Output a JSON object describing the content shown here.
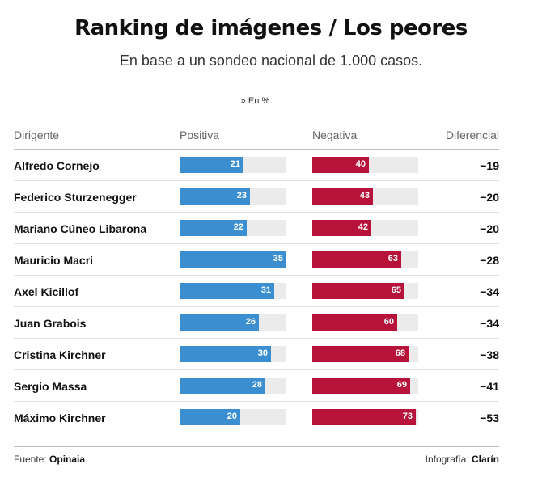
{
  "header": {
    "title": "Ranking de imágenes / Los peores",
    "subtitle": "En base a un sondeo nacional de 1.000 casos.",
    "note": "» En %."
  },
  "columns": {
    "dirigente": "Dirigente",
    "positiva": "Positiva",
    "negativa": "Negativa",
    "diferencial": "Diferencial"
  },
  "footer": {
    "source_label": "Fuente: ",
    "source": "Opinaia",
    "credit_label": "Infografía: ",
    "credit": "Clarín"
  },
  "colors": {
    "positiva": "#3b8fd0",
    "negativa": "#b7133a",
    "track": "#ebebeb"
  },
  "chart_data": {
    "type": "bar",
    "title": "Ranking de imágenes / Los peores",
    "subtitle": "En base a un sondeo nacional de 1.000 casos.",
    "unit": "%",
    "categories": [
      "Alfredo Cornejo",
      "Federico Sturzenegger",
      "Mariano Cúneo Libarona",
      "Mauricio Macri",
      "Axel Kicillof",
      "Juan Grabois",
      "Cristina Kirchner",
      "Sergio Massa",
      "Máximo Kirchner"
    ],
    "series": [
      {
        "name": "Positiva",
        "values": [
          21,
          23,
          22,
          35,
          31,
          26,
          30,
          28,
          20
        ]
      },
      {
        "name": "Negativa",
        "values": [
          40,
          43,
          42,
          63,
          65,
          60,
          68,
          69,
          73
        ]
      }
    ],
    "diferencial": [
      "−19",
      "−20",
      "−20",
      "−28",
      "−34",
      "−34",
      "−38",
      "−41",
      "−53"
    ],
    "positiva_max": 35,
    "negativa_max": 75
  }
}
